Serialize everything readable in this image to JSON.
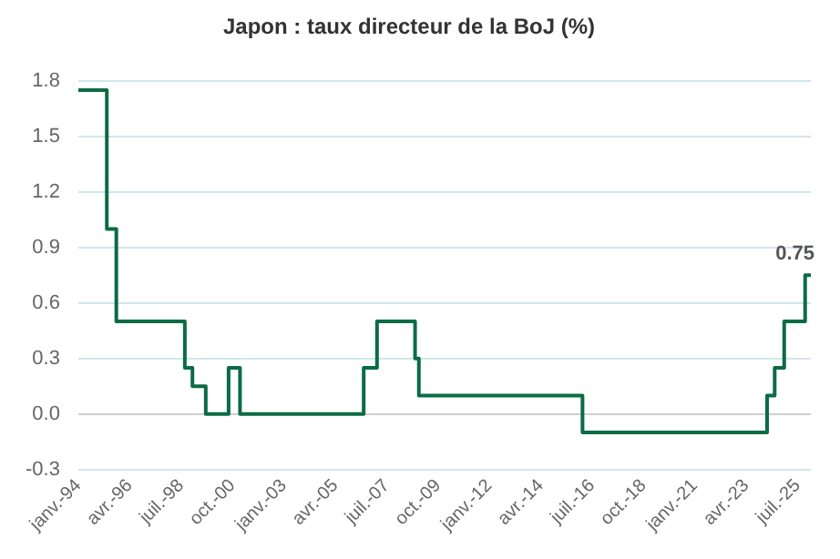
{
  "chart_data": {
    "type": "step",
    "title": "Japon : taux directeur de la BoJ (%)",
    "x": [
      "1994-01",
      "1995-04",
      "1995-09",
      "1998-09",
      "1999-01",
      "1999-08",
      "2000-08",
      "2001-02",
      "2006-07",
      "2007-02",
      "2008-10",
      "2008-12",
      "2016-02",
      "2024-03",
      "2024-07",
      "2024-12",
      "2025-11",
      "2026-02"
    ],
    "series": [
      {
        "color": "#0b6b45",
        "values": [
          1.75,
          1.0,
          0.5,
          0.25,
          0.15,
          0.0,
          0.25,
          0.0,
          0.25,
          0.5,
          0.3,
          0.1,
          -0.1,
          0.1,
          0.25,
          0.5,
          0.75,
          0.75
        ],
        "value_labels": [
          null,
          null,
          null,
          null,
          null,
          null,
          null,
          null,
          null,
          null,
          null,
          null,
          null,
          null,
          null,
          null,
          null,
          "0.75"
        ]
      }
    ],
    "xlim": [
      "1994-01",
      "2026-02"
    ],
    "xticks": [
      {
        "value": "1994-01",
        "label": "janv.-94"
      },
      {
        "value": "1996-04",
        "label": "avr.-96"
      },
      {
        "value": "1998-07",
        "label": "juil.-98"
      },
      {
        "value": "2000-10",
        "label": "oct.-00"
      },
      {
        "value": "2003-01",
        "label": "janv.-03"
      },
      {
        "value": "2005-04",
        "label": "avr.-05"
      },
      {
        "value": "2007-07",
        "label": "juil.-07"
      },
      {
        "value": "2009-10",
        "label": "oct.-09"
      },
      {
        "value": "2012-01",
        "label": "janv.-12"
      },
      {
        "value": "2014-04",
        "label": "avr.-14"
      },
      {
        "value": "2016-07",
        "label": "juil.-16"
      },
      {
        "value": "2018-10",
        "label": "oct.-18"
      },
      {
        "value": "2021-01",
        "label": "janv.-21"
      },
      {
        "value": "2023-04",
        "label": "avr.-23"
      },
      {
        "value": "2025-07",
        "label": "juil.-25"
      }
    ],
    "ylim": [
      -0.3,
      1.8
    ],
    "yticks": [
      -0.3,
      {
        "value": 0,
        "label": "0.0"
      },
      0.3,
      0.6,
      0.9,
      1.2,
      1.5,
      1.8
    ],
    "grid": "y"
  }
}
